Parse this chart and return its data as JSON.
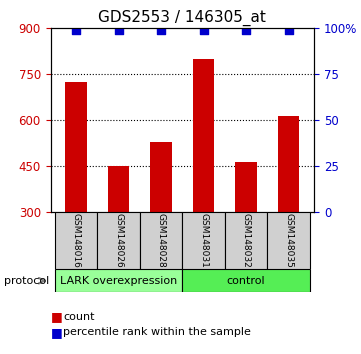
{
  "title": "GDS2553 / 146305_at",
  "samples": [
    "GSM148016",
    "GSM148026",
    "GSM148028",
    "GSM148031",
    "GSM148032",
    "GSM148035"
  ],
  "bar_values": [
    725,
    450,
    530,
    800,
    465,
    615
  ],
  "percentile_values": [
    99,
    99,
    99,
    99,
    99,
    99
  ],
  "y_min": 300,
  "y_max": 900,
  "y_ticks": [
    300,
    450,
    600,
    750,
    900
  ],
  "y_ticks_right": [
    0,
    25,
    50,
    75,
    100
  ],
  "bar_color": "#cc0000",
  "percentile_color": "#0000cc",
  "bar_width": 0.5,
  "group1_label": "LARK overexpression",
  "group2_label": "control",
  "group1_color": "#99ff99",
  "group2_color": "#55ee55",
  "group1_indices": [
    0,
    1,
    2
  ],
  "group2_indices": [
    3,
    4,
    5
  ],
  "legend_count_label": "count",
  "legend_percentile_label": "percentile rank within the sample",
  "protocol_label": "protocol",
  "title_fontsize": 11,
  "tick_fontsize": 8.5,
  "sample_label_fontsize": 6.5,
  "group_label_fontsize": 8,
  "legend_fontsize": 8
}
